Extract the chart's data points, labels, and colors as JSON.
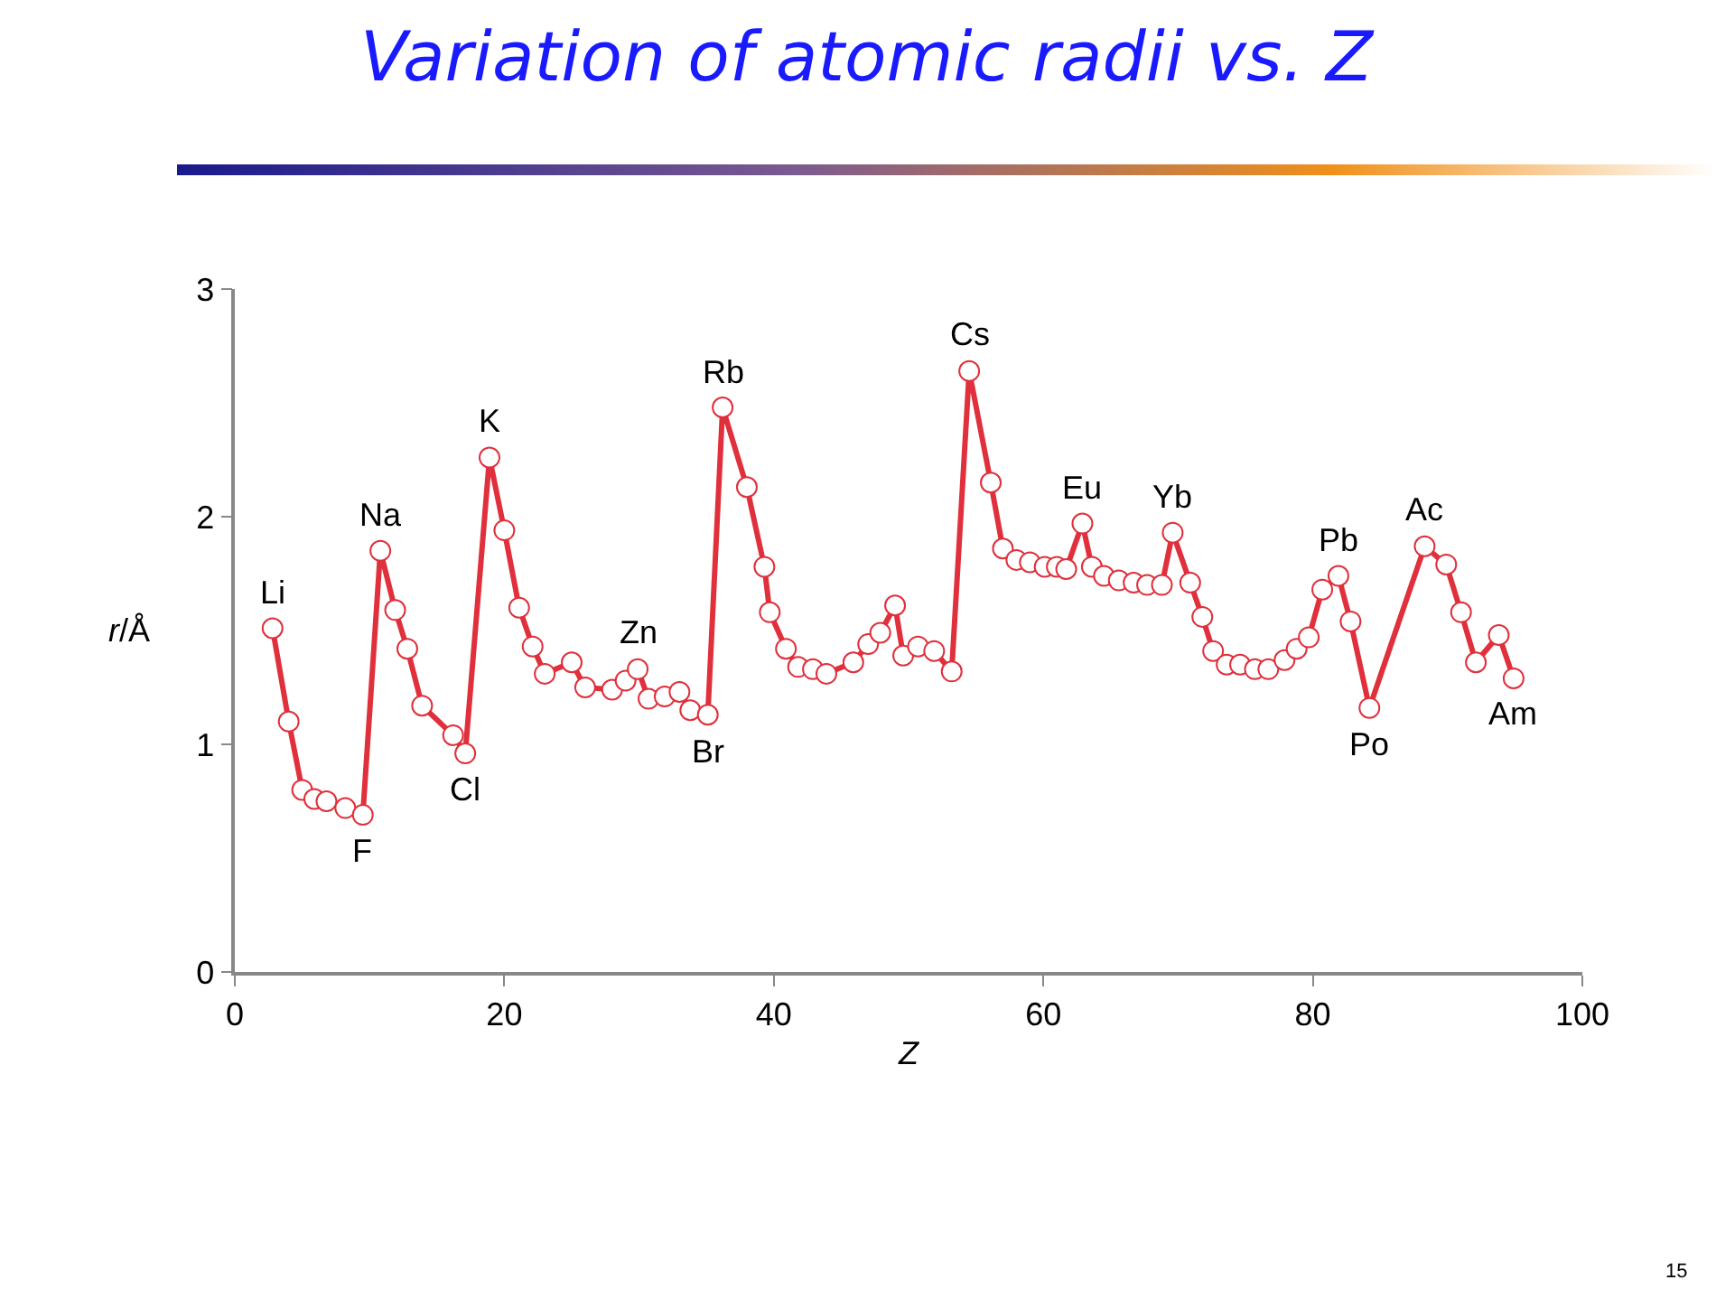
{
  "chart_data": {
    "type": "line",
    "title": "Variation of atomic radii vs. Z",
    "xlabel": "Z",
    "ylabel": "r/Å",
    "x": [
      2.8,
      4.0,
      5.0,
      5.9,
      6.8,
      8.2,
      9.5,
      10.8,
      11.9,
      12.8,
      13.9,
      16.2,
      17.1,
      18.9,
      20.0,
      21.1,
      22.1,
      23.0,
      25.0,
      26.0,
      28.0,
      29.0,
      29.9,
      30.7,
      31.9,
      33.0,
      33.8,
      35.1,
      36.2,
      38.0,
      39.3,
      39.7,
      40.9,
      41.8,
      42.9,
      43.9,
      45.9,
      47.0,
      47.9,
      49.0,
      49.6,
      50.7,
      51.9,
      53.2,
      54.5,
      56.1,
      57.0,
      58.0,
      59.0,
      60.1,
      61.0,
      61.7,
      62.9,
      63.6,
      64.5,
      65.6,
      66.7,
      67.7,
      68.8,
      69.6,
      70.9,
      71.8,
      72.6,
      73.6,
      74.6,
      75.7,
      76.7,
      77.9,
      78.8,
      79.7,
      80.7,
      81.9,
      82.8,
      84.2,
      88.3,
      89.9,
      91.0,
      92.1,
      93.8,
      94.9
    ],
    "series": [
      {
        "color": "#e0303c",
        "values": [
          1.51,
          1.1,
          0.8,
          0.76,
          0.75,
          0.72,
          0.69,
          1.85,
          1.59,
          1.42,
          1.17,
          1.04,
          0.96,
          2.26,
          1.94,
          1.6,
          1.43,
          1.31,
          1.36,
          1.25,
          1.24,
          1.28,
          1.33,
          1.2,
          1.21,
          1.23,
          1.15,
          1.13,
          2.48,
          2.13,
          1.78,
          1.58,
          1.42,
          1.34,
          1.33,
          1.31,
          1.36,
          1.44,
          1.49,
          1.61,
          1.39,
          1.43,
          1.41,
          1.32,
          2.64,
          2.15,
          1.86,
          1.81,
          1.8,
          1.78,
          1.78,
          1.77,
          1.97,
          1.78,
          1.74,
          1.72,
          1.71,
          1.7,
          1.7,
          1.93,
          1.71,
          1.56,
          1.41,
          1.35,
          1.35,
          1.33,
          1.33,
          1.37,
          1.42,
          1.47,
          1.68,
          1.74,
          1.54,
          1.16,
          1.87,
          1.79,
          1.58,
          1.36,
          1.48,
          1.29
        ]
      }
    ],
    "xlim": [
      0,
      100
    ],
    "xticks": [
      0,
      20,
      40,
      60,
      80,
      100
    ],
    "ylim": [
      0,
      3
    ],
    "yticks": [
      0,
      1,
      2,
      3
    ],
    "marker": "circle",
    "line_style": "solid",
    "annotations": [
      {
        "text": "Li",
        "x": 2.8,
        "y": 1.51
      },
      {
        "text": "F",
        "x": 9.5,
        "y": 0.69
      },
      {
        "text": "Na",
        "x": 10.8,
        "y": 1.85
      },
      {
        "text": "Cl",
        "x": 17.1,
        "y": 0.96
      },
      {
        "text": "K",
        "x": 18.9,
        "y": 2.26
      },
      {
        "text": "Zn",
        "x": 29.9,
        "y": 1.33
      },
      {
        "text": "Br",
        "x": 35.1,
        "y": 1.13
      },
      {
        "text": "Rb",
        "x": 36.2,
        "y": 2.48
      },
      {
        "text": "Cs",
        "x": 54.5,
        "y": 2.64
      },
      {
        "text": "Eu",
        "x": 62.9,
        "y": 1.97
      },
      {
        "text": "Yb",
        "x": 69.6,
        "y": 1.93
      },
      {
        "text": "Pb",
        "x": 81.9,
        "y": 1.74
      },
      {
        "text": "Po",
        "x": 84.2,
        "y": 1.16
      },
      {
        "text": "Ac",
        "x": 88.3,
        "y": 1.87
      },
      {
        "text": "Am",
        "x": 94.9,
        "y": 1.29
      },
      "15"
    ]
  }
}
